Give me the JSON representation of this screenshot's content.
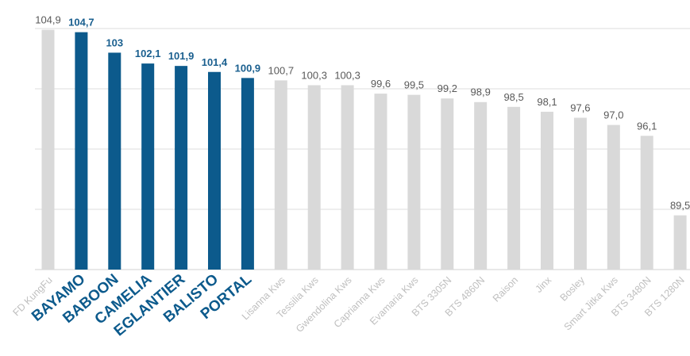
{
  "chart_data": {
    "type": "bar",
    "categories": [
      "FD KungFu",
      "BAYAMO",
      "BABOON",
      "CAMELIA",
      "EGLANTIER",
      "BALISTO",
      "PORTAL",
      "Lisanna Kws",
      "Tessilia Kws",
      "Gwendolina Kws",
      "Caprianna Kws",
      "Evamaria Kws",
      "BTS 3305N",
      "BTS 4860N",
      "Raison",
      "Jinx",
      "Bosley",
      "Smart Jitka Kws",
      "BTS 3480N",
      "BTS 1280N"
    ],
    "values": [
      104.9,
      104.7,
      103,
      102.1,
      101.9,
      101.4,
      100.9,
      100.7,
      100.3,
      100.3,
      99.6,
      99.5,
      99.2,
      98.9,
      98.5,
      98.1,
      97.6,
      97.0,
      96.1,
      89.5
    ],
    "value_labels": [
      "104,9",
      "104,7",
      "103",
      "102,1",
      "101,9",
      "101,4",
      "100,9",
      "100,7",
      "100,3",
      "100,3",
      "99,6",
      "99,5",
      "99,2",
      "98,9",
      "98,5",
      "98,1",
      "97,6",
      "97,0",
      "96,1",
      "89,5"
    ],
    "highlighted": [
      false,
      true,
      true,
      true,
      true,
      true,
      true,
      false,
      false,
      false,
      false,
      false,
      false,
      false,
      false,
      false,
      false,
      false,
      false,
      false
    ],
    "title": "",
    "xlabel": "",
    "ylabel": "",
    "ylim": [
      85,
      105
    ],
    "grid": true,
    "legend": "none",
    "colors": {
      "highlight_bar": "#0c5a8c",
      "highlight_label": "#1a5f8f",
      "default_bar": "#d9d9d9",
      "default_value_label": "#595959",
      "default_category_label": "#bfbfbf",
      "grid": "#dcdcdc"
    }
  }
}
